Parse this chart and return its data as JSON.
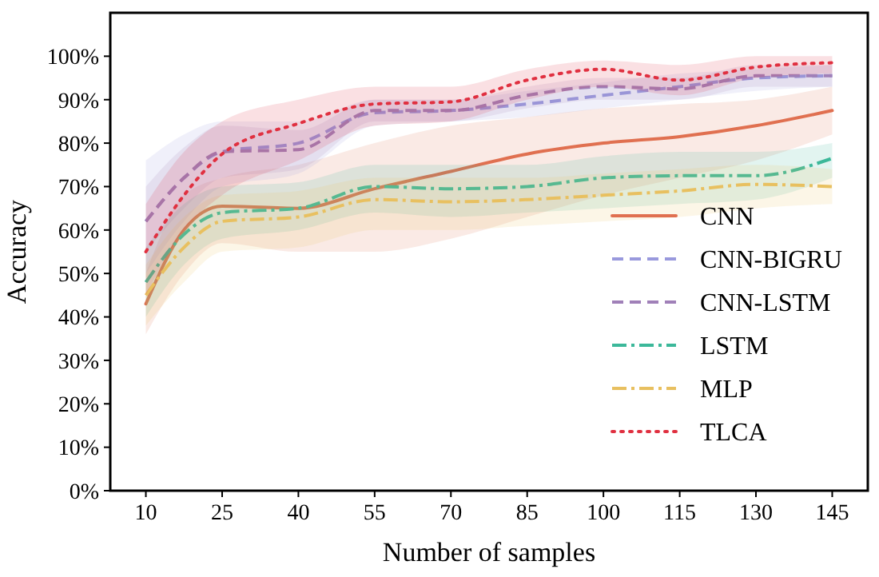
{
  "chart_data": {
    "type": "line",
    "xlabel": "Number of samples",
    "ylabel": "Accuracy",
    "x": [
      10,
      17.5,
      25,
      40,
      55,
      70,
      85,
      100,
      115,
      130,
      145
    ],
    "xlim": [
      3,
      152
    ],
    "xticks": [
      10,
      25,
      40,
      55,
      70,
      85,
      100,
      115,
      130,
      145
    ],
    "ylim": [
      0,
      110
    ],
    "yticks": [
      {
        "value": 0,
        "label": "0%"
      },
      {
        "value": 10,
        "label": "10%"
      },
      {
        "value": 20,
        "label": "20%"
      },
      {
        "value": 30,
        "label": "30%"
      },
      {
        "value": 40,
        "label": "40%"
      },
      {
        "value": 50,
        "label": "50%"
      },
      {
        "value": 60,
        "label": "60%"
      },
      {
        "value": 70,
        "label": "70%"
      },
      {
        "value": 80,
        "label": "80%"
      },
      {
        "value": 90,
        "label": "90%"
      },
      {
        "value": 100,
        "label": "100%"
      }
    ],
    "grid": false,
    "legend": "bottom right",
    "marker": "none",
    "series": [
      {
        "name": "CNN",
        "color": "#e07050",
        "line_style": "solid",
        "values": [
          43,
          60,
          65.5,
          65,
          69.5,
          73.5,
          77.5,
          80,
          81.5,
          84,
          87.5
        ],
        "lower": [
          36,
          50,
          57,
          55,
          55,
          58,
          63,
          68,
          72,
          76,
          82
        ],
        "upper": [
          50,
          68,
          72,
          75,
          80,
          84,
          86,
          88,
          89,
          90,
          93
        ]
      },
      {
        "name": "CNN-BIGRU",
        "color": "#9999dd",
        "line_style": "dashed",
        "values": [
          62,
          72,
          78,
          80,
          87,
          87.5,
          89,
          91,
          93,
          95,
          95.5
        ],
        "lower": [
          50,
          62,
          70,
          73,
          84,
          85,
          86,
          88,
          90,
          92,
          93
        ],
        "upper": [
          76,
          82,
          85,
          85,
          90,
          90,
          92,
          94,
          96,
          97,
          98
        ]
      },
      {
        "name": "CNN-LSTM",
        "color": "#a080b8",
        "line_style": "dashed",
        "values": [
          62,
          72,
          78,
          78.5,
          87.5,
          87.5,
          91,
          93,
          92.5,
          95.5,
          95.5
        ],
        "lower": [
          55,
          65,
          72,
          74,
          85,
          85,
          88,
          90,
          90,
          93,
          93
        ],
        "upper": [
          70,
          79,
          84,
          83,
          90,
          90,
          93,
          95,
          95,
          98,
          98
        ]
      },
      {
        "name": "LSTM",
        "color": "#3cb89a",
        "line_style": "dashdot",
        "values": [
          48,
          59,
          64,
          65,
          70,
          69.5,
          70,
          72,
          72.5,
          72.5,
          76.5
        ],
        "lower": [
          40,
          52,
          58,
          60,
          64,
          63,
          64,
          65,
          66,
          67,
          72
        ],
        "upper": [
          56,
          66,
          70,
          71,
          75,
          75,
          75,
          77,
          78,
          78,
          80
        ]
      },
      {
        "name": "MLP",
        "color": "#e8c060",
        "line_style": "dashdot",
        "values": [
          45,
          56,
          62,
          63,
          67,
          66.5,
          67,
          68,
          69,
          70.5,
          70
        ],
        "lower": [
          38,
          48,
          55,
          56,
          60,
          60,
          61,
          62,
          63,
          65,
          66
        ],
        "upper": [
          52,
          63,
          68,
          69,
          72,
          72,
          72,
          73,
          74,
          75,
          74
        ]
      },
      {
        "name": "TLCA",
        "color": "#e03040",
        "line_style": "dotted",
        "values": [
          55,
          68,
          77.5,
          84.5,
          89,
          89.5,
          94.5,
          97,
          94.5,
          97.5,
          98.5
        ],
        "lower": [
          45,
          60,
          68,
          76,
          84,
          85,
          90,
          93,
          91,
          95,
          96
        ],
        "upper": [
          66,
          78,
          85,
          90,
          93,
          93,
          97,
          99,
          98,
          100,
          100
        ]
      }
    ]
  }
}
